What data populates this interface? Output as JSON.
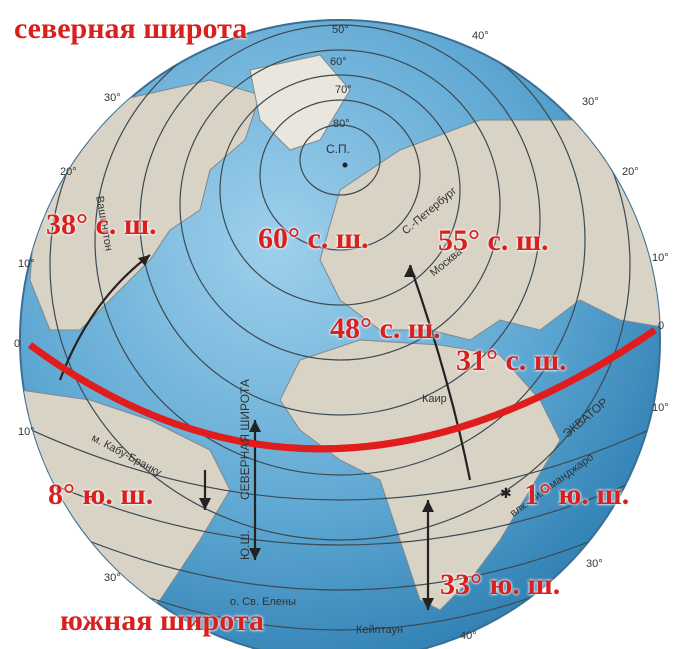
{
  "headings": {
    "north": "северная широта",
    "south": "южная широта"
  },
  "coordinates": [
    "38° с. ш.",
    "60° с. ш.",
    "55° с. ш.",
    "48° с. ш.",
    "31° с. ш.",
    "8° ю. ш.",
    "1° ю. ш.",
    "33° ю. ш."
  ],
  "pole_label": "С.П.",
  "latitude_ticks": [
    "50°",
    "60°",
    "70°",
    "80°"
  ],
  "edge_degrees": [
    "40°",
    "30°",
    "30°",
    "20°",
    "20°",
    "10°",
    "10°",
    "0",
    "0",
    "10°",
    "10°",
    "30°",
    "40°",
    "30°"
  ],
  "map_labels": {
    "washington": "Вашингтон",
    "st_petersburg": "С.-Петербург",
    "moscow": "Москва",
    "cairo": "Каир",
    "cape_verde": "м. Кабу-Бранку",
    "st_helena": "о. Св. Елены",
    "capetown": "Кейптаун",
    "kilimanjaro": "влк. Килиманджаро",
    "equator": "ЭКВАТОР",
    "north_lat": "СЕВЕРНАЯ ШИРОТА",
    "south_lat_abbr": "Ю.Ш."
  },
  "colors": {
    "ocean": "#5fa8d3",
    "land": "#d7d2c4",
    "equator_line": "#e01c1c",
    "label_red": "#d8211f"
  }
}
